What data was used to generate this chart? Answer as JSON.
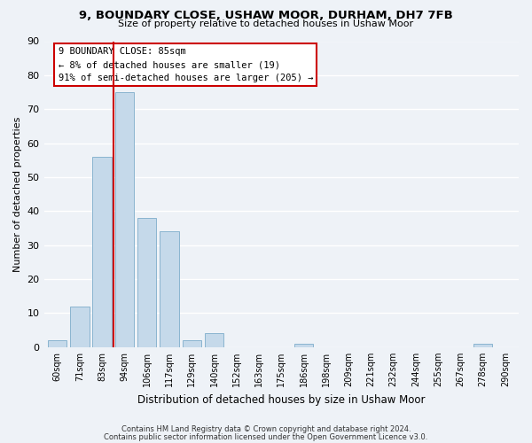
{
  "title": "9, BOUNDARY CLOSE, USHAW MOOR, DURHAM, DH7 7FB",
  "subtitle": "Size of property relative to detached houses in Ushaw Moor",
  "xlabel": "Distribution of detached houses by size in Ushaw Moor",
  "ylabel": "Number of detached properties",
  "bar_labels": [
    "60sqm",
    "71sqm",
    "83sqm",
    "94sqm",
    "106sqm",
    "117sqm",
    "129sqm",
    "140sqm",
    "152sqm",
    "163sqm",
    "175sqm",
    "186sqm",
    "198sqm",
    "209sqm",
    "221sqm",
    "232sqm",
    "244sqm",
    "255sqm",
    "267sqm",
    "278sqm",
    "290sqm"
  ],
  "bar_values": [
    2,
    12,
    56,
    75,
    38,
    34,
    2,
    4,
    0,
    0,
    0,
    1,
    0,
    0,
    0,
    0,
    0,
    0,
    0,
    1,
    0
  ],
  "bar_color": "#c5d9ea",
  "bar_edge_color": "#8ab4cf",
  "ylim": [
    0,
    90
  ],
  "yticks": [
    0,
    10,
    20,
    30,
    40,
    50,
    60,
    70,
    80,
    90
  ],
  "vline_color": "#cc0000",
  "annotation_title": "9 BOUNDARY CLOSE: 85sqm",
  "annotation_line1": "← 8% of detached houses are smaller (19)",
  "annotation_line2": "91% of semi-detached houses are larger (205) →",
  "footer1": "Contains HM Land Registry data © Crown copyright and database right 2024.",
  "footer2": "Contains public sector information licensed under the Open Government Licence v3.0.",
  "background_color": "#eef2f7",
  "grid_color": "#ffffff"
}
